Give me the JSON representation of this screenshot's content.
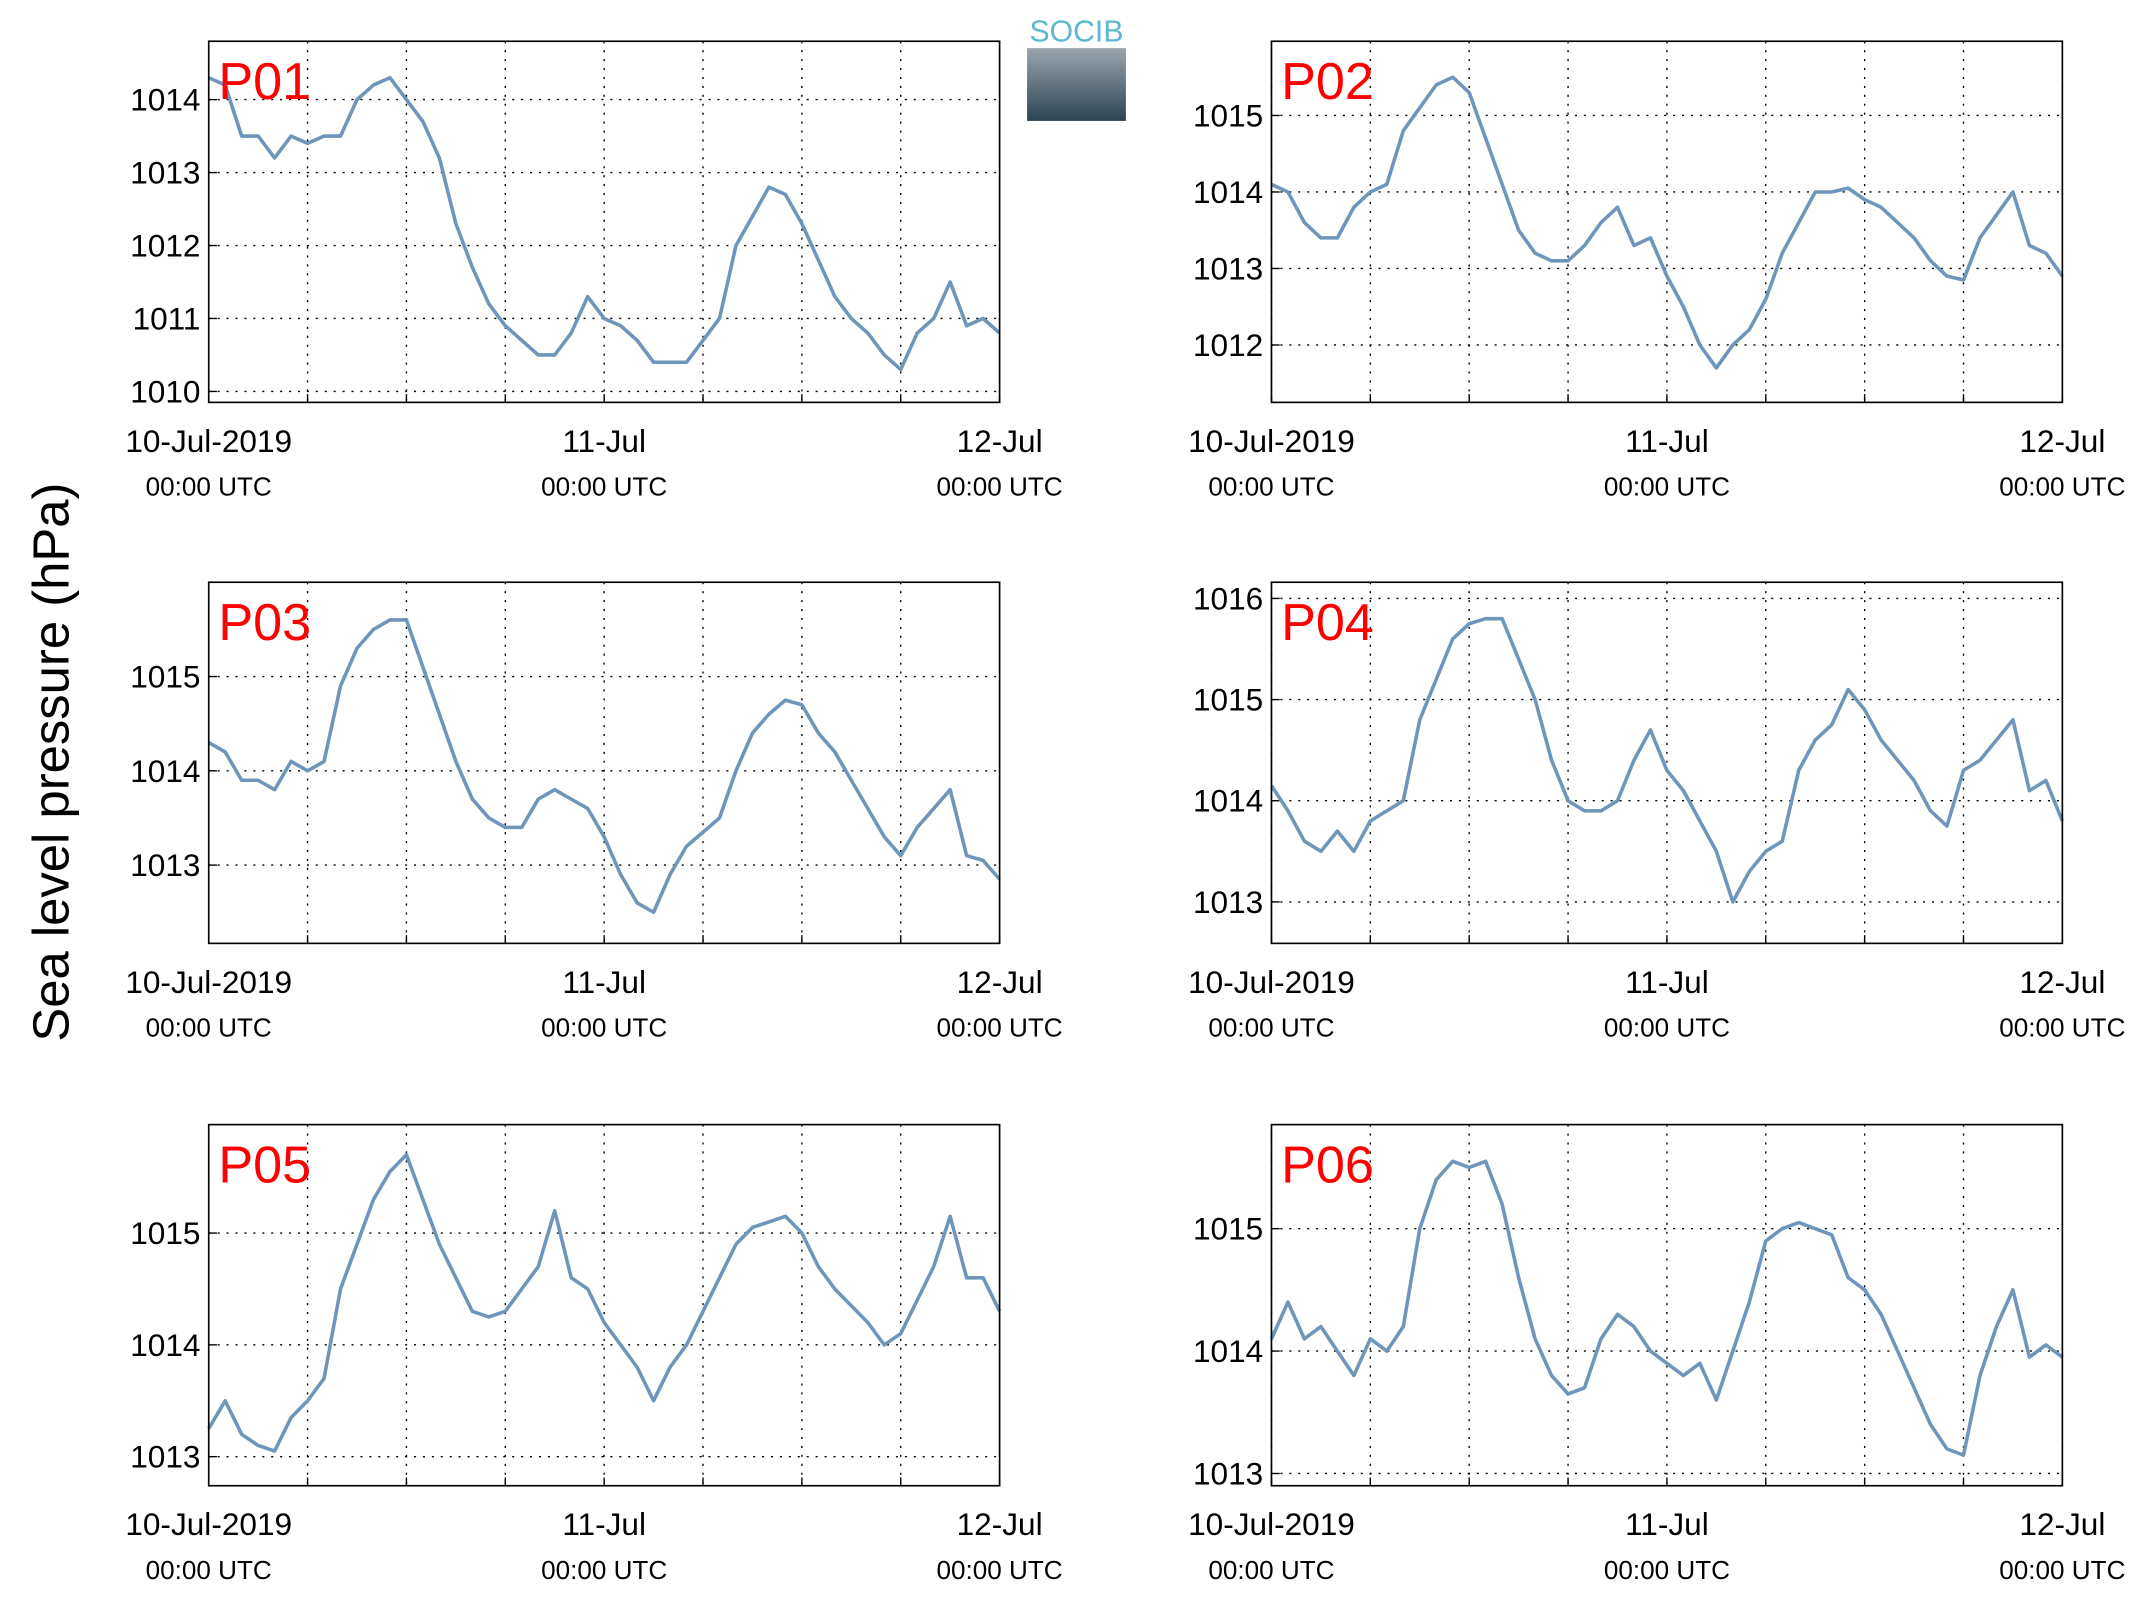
{
  "ylabel": "Sea level pressure (hPa)",
  "logo": "SOCIB",
  "chart_data": [
    {
      "type": "line",
      "title": "P01",
      "color": "#6f96ba",
      "grid": true,
      "xlim": [
        0,
        48
      ],
      "ylim": [
        1009.85,
        1014.8
      ],
      "yticks": [
        1010,
        1011,
        1012,
        1013,
        1014
      ],
      "xticks": [
        {
          "value": 0,
          "label": [
            "10-Jul-2019",
            "00:00 UTC"
          ]
        },
        {
          "value": 24,
          "label": [
            "11-Jul",
            "00:00 UTC"
          ]
        },
        {
          "value": 48,
          "label": [
            "12-Jul",
            "00:00 UTC"
          ]
        }
      ],
      "xminor": [
        6,
        12,
        18,
        30,
        36,
        42
      ],
      "x": [
        0,
        1,
        2,
        3,
        4,
        5,
        6,
        7,
        8,
        9,
        10,
        11,
        12,
        13,
        14,
        15,
        16,
        17,
        18,
        19,
        20,
        21,
        22,
        23,
        24,
        25,
        26,
        27,
        28,
        29,
        30,
        31,
        32,
        33,
        34,
        35,
        36,
        37,
        38,
        39,
        40,
        41,
        42,
        43,
        44,
        45,
        46,
        47,
        48
      ],
      "values": [
        1014.3,
        1014.2,
        1013.5,
        1013.5,
        1013.2,
        1013.5,
        1013.4,
        1013.5,
        1013.5,
        1014.0,
        1014.2,
        1014.3,
        1014.0,
        1013.7,
        1013.2,
        1012.3,
        1011.7,
        1011.2,
        1010.9,
        1010.7,
        1010.5,
        1010.5,
        1010.8,
        1011.3,
        1011.0,
        1010.9,
        1010.7,
        1010.4,
        1010.4,
        1010.4,
        1010.7,
        1011.0,
        1012.0,
        1012.4,
        1012.8,
        1012.7,
        1012.3,
        1011.8,
        1011.3,
        1011.0,
        1010.8,
        1010.5,
        1010.3,
        1010.8,
        1011.0,
        1011.5,
        1010.9,
        1011.0,
        1010.8
      ]
    },
    {
      "type": "line",
      "title": "P02",
      "color": "#6f96ba",
      "grid": true,
      "xlim": [
        0,
        48
      ],
      "ylim": [
        1011.25,
        1015.97
      ],
      "yticks": [
        1012,
        1013,
        1014,
        1015
      ],
      "xticks": [
        {
          "value": 0,
          "label": [
            "10-Jul-2019",
            "00:00 UTC"
          ]
        },
        {
          "value": 24,
          "label": [
            "11-Jul",
            "00:00 UTC"
          ]
        },
        {
          "value": 48,
          "label": [
            "12-Jul",
            "00:00 UTC"
          ]
        }
      ],
      "xminor": [
        6,
        12,
        18,
        30,
        36,
        42
      ],
      "x": [
        0,
        1,
        2,
        3,
        4,
        5,
        6,
        7,
        8,
        9,
        10,
        11,
        12,
        13,
        14,
        15,
        16,
        17,
        18,
        19,
        20,
        21,
        22,
        23,
        24,
        25,
        26,
        27,
        28,
        29,
        30,
        31,
        32,
        33,
        34,
        35,
        36,
        37,
        38,
        39,
        40,
        41,
        42,
        43,
        44,
        45,
        46,
        47,
        48
      ],
      "values": [
        1014.1,
        1014.0,
        1013.6,
        1013.4,
        1013.4,
        1013.8,
        1014.0,
        1014.1,
        1014.8,
        1015.1,
        1015.4,
        1015.5,
        1015.3,
        1014.7,
        1014.1,
        1013.5,
        1013.2,
        1013.1,
        1013.1,
        1013.3,
        1013.6,
        1013.8,
        1013.3,
        1013.4,
        1012.9,
        1012.5,
        1012.0,
        1011.7,
        1012.0,
        1012.2,
        1012.6,
        1013.2,
        1013.6,
        1014.0,
        1014.0,
        1014.05,
        1013.9,
        1013.8,
        1013.6,
        1013.4,
        1013.1,
        1012.9,
        1012.85,
        1013.4,
        1013.7,
        1014.0,
        1013.3,
        1013.2,
        1012.9
      ]
    },
    {
      "type": "line",
      "title": "P03",
      "color": "#6f96ba",
      "grid": true,
      "xlim": [
        0,
        48
      ],
      "ylim": [
        1012.17,
        1016.0
      ],
      "yticks": [
        1013,
        1014,
        1015
      ],
      "xticks": [
        {
          "value": 0,
          "label": [
            "10-Jul-2019",
            "00:00 UTC"
          ]
        },
        {
          "value": 24,
          "label": [
            "11-Jul",
            "00:00 UTC"
          ]
        },
        {
          "value": 48,
          "label": [
            "12-Jul",
            "00:00 UTC"
          ]
        }
      ],
      "xminor": [
        6,
        12,
        18,
        30,
        36,
        42
      ],
      "x": [
        0,
        1,
        2,
        3,
        4,
        5,
        6,
        7,
        8,
        9,
        10,
        11,
        12,
        13,
        14,
        15,
        16,
        17,
        18,
        19,
        20,
        21,
        22,
        23,
        24,
        25,
        26,
        27,
        28,
        29,
        30,
        31,
        32,
        33,
        34,
        35,
        36,
        37,
        38,
        39,
        40,
        41,
        42,
        43,
        44,
        45,
        46,
        47,
        48
      ],
      "values": [
        1014.3,
        1014.2,
        1013.9,
        1013.9,
        1013.8,
        1014.1,
        1014.0,
        1014.1,
        1014.9,
        1015.3,
        1015.5,
        1015.6,
        1015.6,
        1015.1,
        1014.6,
        1014.1,
        1013.7,
        1013.5,
        1013.4,
        1013.4,
        1013.7,
        1013.8,
        1013.7,
        1013.6,
        1013.3,
        1012.9,
        1012.6,
        1012.5,
        1012.9,
        1013.2,
        1013.35,
        1013.5,
        1014.0,
        1014.4,
        1014.6,
        1014.75,
        1014.7,
        1014.4,
        1014.2,
        1013.9,
        1013.6,
        1013.3,
        1013.1,
        1013.4,
        1013.6,
        1013.8,
        1013.1,
        1013.05,
        1012.85
      ]
    },
    {
      "type": "line",
      "title": "P04",
      "color": "#6f96ba",
      "grid": true,
      "xlim": [
        0,
        48
      ],
      "ylim": [
        1012.59,
        1016.16
      ],
      "yticks": [
        1013,
        1014,
        1015,
        1016
      ],
      "xticks": [
        {
          "value": 0,
          "label": [
            "10-Jul-2019",
            "00:00 UTC"
          ]
        },
        {
          "value": 24,
          "label": [
            "11-Jul",
            "00:00 UTC"
          ]
        },
        {
          "value": 48,
          "label": [
            "12-Jul",
            "00:00 UTC"
          ]
        }
      ],
      "xminor": [
        6,
        12,
        18,
        30,
        36,
        42
      ],
      "x": [
        0,
        1,
        2,
        3,
        4,
        5,
        6,
        7,
        8,
        9,
        10,
        11,
        12,
        13,
        14,
        15,
        16,
        17,
        18,
        19,
        20,
        21,
        22,
        23,
        24,
        25,
        26,
        27,
        28,
        29,
        30,
        31,
        32,
        33,
        34,
        35,
        36,
        37,
        38,
        39,
        40,
        41,
        42,
        43,
        44,
        45,
        46,
        47,
        48
      ],
      "values": [
        1014.15,
        1013.9,
        1013.6,
        1013.5,
        1013.7,
        1013.5,
        1013.8,
        1013.9,
        1014.0,
        1014.8,
        1015.2,
        1015.6,
        1015.75,
        1015.8,
        1015.8,
        1015.4,
        1015.0,
        1014.4,
        1014.0,
        1013.9,
        1013.9,
        1014.0,
        1014.4,
        1014.7,
        1014.3,
        1014.1,
        1013.8,
        1013.5,
        1013.0,
        1013.3,
        1013.5,
        1013.6,
        1014.3,
        1014.6,
        1014.75,
        1015.1,
        1014.9,
        1014.6,
        1014.4,
        1014.2,
        1013.9,
        1013.75,
        1014.3,
        1014.4,
        1014.6,
        1014.8,
        1014.1,
        1014.2,
        1013.8
      ]
    },
    {
      "type": "line",
      "title": "P05",
      "color": "#6f96ba",
      "grid": true,
      "xlim": [
        0,
        48
      ],
      "ylim": [
        1012.74,
        1015.97
      ],
      "yticks": [
        1013,
        1014,
        1015
      ],
      "xticks": [
        {
          "value": 0,
          "label": [
            "10-Jul-2019",
            "00:00 UTC"
          ]
        },
        {
          "value": 24,
          "label": [
            "11-Jul",
            "00:00 UTC"
          ]
        },
        {
          "value": 48,
          "label": [
            "12-Jul",
            "00:00 UTC"
          ]
        }
      ],
      "xminor": [
        6,
        12,
        18,
        30,
        36,
        42
      ],
      "x": [
        0,
        1,
        2,
        3,
        4,
        5,
        6,
        7,
        8,
        9,
        10,
        11,
        12,
        13,
        14,
        15,
        16,
        17,
        18,
        19,
        20,
        21,
        22,
        23,
        24,
        25,
        26,
        27,
        28,
        29,
        30,
        31,
        32,
        33,
        34,
        35,
        36,
        37,
        38,
        39,
        40,
        41,
        42,
        43,
        44,
        45,
        46,
        47,
        48
      ],
      "values": [
        1013.25,
        1013.5,
        1013.2,
        1013.1,
        1013.05,
        1013.35,
        1013.5,
        1013.7,
        1014.5,
        1014.9,
        1015.3,
        1015.55,
        1015.7,
        1015.3,
        1014.9,
        1014.6,
        1014.3,
        1014.25,
        1014.3,
        1014.5,
        1014.7,
        1015.2,
        1014.6,
        1014.5,
        1014.2,
        1014.0,
        1013.8,
        1013.5,
        1013.8,
        1014.0,
        1014.3,
        1014.6,
        1014.9,
        1015.05,
        1015.1,
        1015.15,
        1015.0,
        1014.7,
        1014.5,
        1014.35,
        1014.2,
        1014.0,
        1014.1,
        1014.4,
        1014.7,
        1015.15,
        1014.6,
        1014.6,
        1014.3
      ]
    },
    {
      "type": "line",
      "title": "P06",
      "color": "#6f96ba",
      "grid": true,
      "xlim": [
        0,
        48
      ],
      "ylim": [
        1012.9,
        1015.85
      ],
      "yticks": [
        1013,
        1014,
        1015
      ],
      "xticks": [
        {
          "value": 0,
          "label": [
            "10-Jul-2019",
            "00:00 UTC"
          ]
        },
        {
          "value": 24,
          "label": [
            "11-Jul",
            "00:00 UTC"
          ]
        },
        {
          "value": 48,
          "label": [
            "12-Jul",
            "00:00 UTC"
          ]
        }
      ],
      "xminor": [
        6,
        12,
        18,
        30,
        36,
        42
      ],
      "x": [
        0,
        1,
        2,
        3,
        4,
        5,
        6,
        7,
        8,
        9,
        10,
        11,
        12,
        13,
        14,
        15,
        16,
        17,
        18,
        19,
        20,
        21,
        22,
        23,
        24,
        25,
        26,
        27,
        28,
        29,
        30,
        31,
        32,
        33,
        34,
        35,
        36,
        37,
        38,
        39,
        40,
        41,
        42,
        43,
        44,
        45,
        46,
        47,
        48
      ],
      "values": [
        1014.1,
        1014.4,
        1014.1,
        1014.2,
        1014.0,
        1013.8,
        1014.1,
        1014.0,
        1014.2,
        1015.0,
        1015.4,
        1015.55,
        1015.5,
        1015.55,
        1015.2,
        1014.6,
        1014.1,
        1013.8,
        1013.65,
        1013.7,
        1014.1,
        1014.3,
        1014.2,
        1014.0,
        1013.9,
        1013.8,
        1013.9,
        1013.6,
        1014.0,
        1014.4,
        1014.9,
        1015.0,
        1015.05,
        1015.0,
        1014.95,
        1014.6,
        1014.5,
        1014.3,
        1014.0,
        1013.7,
        1013.4,
        1013.2,
        1013.15,
        1013.8,
        1014.2,
        1014.5,
        1013.95,
        1014.05,
        1013.95
      ]
    }
  ]
}
